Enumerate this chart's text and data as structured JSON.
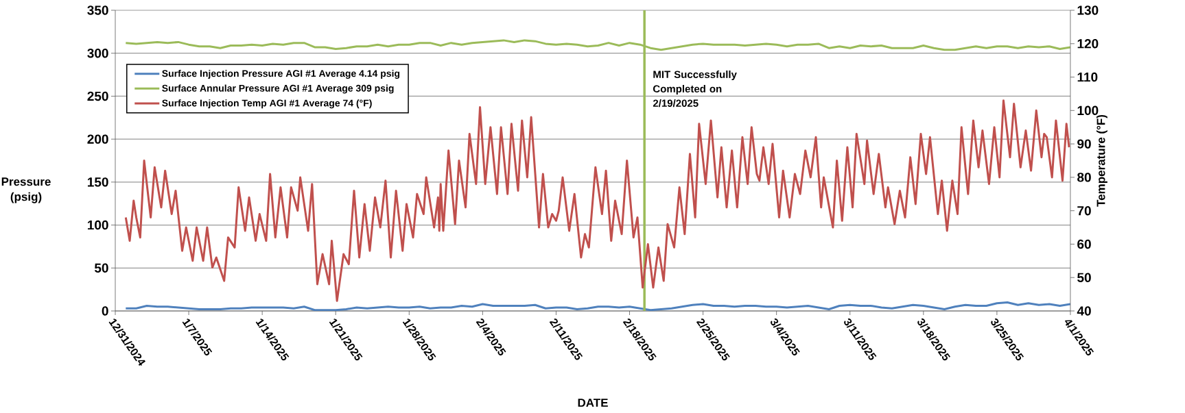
{
  "chart_data": {
    "type": "line",
    "xlabel": "DATE",
    "ylabel": "Pressure (psig)",
    "y2label": "Temperature (°F)",
    "xlim": [
      "2024-12-31",
      "2025-04-01"
    ],
    "xticks": [
      {
        "value": "2024-12-31",
        "label": "12/31/2024"
      },
      {
        "value": "2025-01-07",
        "label": "1/7/2025"
      },
      {
        "value": "2025-01-14",
        "label": "1/14/2025"
      },
      {
        "value": "2025-01-21",
        "label": "1/21/2025"
      },
      {
        "value": "2025-01-28",
        "label": "1/28/2025"
      },
      {
        "value": "2025-02-04",
        "label": "2/4/2025"
      },
      {
        "value": "2025-02-11",
        "label": "2/11/2025"
      },
      {
        "value": "2025-02-18",
        "label": "2/18/2025"
      },
      {
        "value": "2025-02-25",
        "label": "2/25/2025"
      },
      {
        "value": "2025-03-04",
        "label": "3/4/2025"
      },
      {
        "value": "2025-03-11",
        "label": "3/11/2025"
      },
      {
        "value": "2025-03-18",
        "label": "3/18/2025"
      },
      {
        "value": "2025-03-25",
        "label": "3/25/2025"
      },
      {
        "value": "2025-04-01",
        "label": "4/1/2025"
      }
    ],
    "ylim": [
      0,
      350
    ],
    "yticks": [
      0,
      50,
      100,
      150,
      200,
      250,
      300,
      350
    ],
    "y2lim": [
      40,
      130
    ],
    "y2ticks": [
      40,
      50,
      60,
      70,
      80,
      90,
      100,
      110,
      120,
      130
    ],
    "grid": "y",
    "legend": "top left",
    "marker": "none",
    "line_style": "solid",
    "ref_lines": [
      {
        "axis": "x",
        "value": "2025-02-19T10:00",
        "label": "MIT Successfully Completed on 2/19/2025",
        "color": "#9bbb59"
      }
    ],
    "x": [
      "2025-01-01",
      "2025-01-02",
      "2025-01-03",
      "2025-01-04",
      "2025-01-05",
      "2025-01-06",
      "2025-01-07",
      "2025-01-08",
      "2025-01-09",
      "2025-01-10",
      "2025-01-11",
      "2025-01-12",
      "2025-01-13",
      "2025-01-14",
      "2025-01-15",
      "2025-01-16",
      "2025-01-17",
      "2025-01-18",
      "2025-01-19",
      "2025-01-20",
      "2025-01-21",
      "2025-01-22",
      "2025-01-23",
      "2025-01-24",
      "2025-01-25",
      "2025-01-26",
      "2025-01-27",
      "2025-01-28",
      "2025-01-29",
      "2025-01-30",
      "2025-01-31",
      "2025-02-01",
      "2025-02-02",
      "2025-02-03",
      "2025-02-04",
      "2025-02-05",
      "2025-02-06",
      "2025-02-07",
      "2025-02-08",
      "2025-02-09",
      "2025-02-10",
      "2025-02-11",
      "2025-02-12",
      "2025-02-13",
      "2025-02-14",
      "2025-02-15",
      "2025-02-16",
      "2025-02-17",
      "2025-02-18",
      "2025-02-19",
      "2025-02-20",
      "2025-02-21",
      "2025-02-22",
      "2025-02-23",
      "2025-02-24",
      "2025-02-25",
      "2025-02-26",
      "2025-02-27",
      "2025-02-28",
      "2025-03-01",
      "2025-03-02",
      "2025-03-03",
      "2025-03-04",
      "2025-03-05",
      "2025-03-06",
      "2025-03-07",
      "2025-03-08",
      "2025-03-09",
      "2025-03-10",
      "2025-03-11",
      "2025-03-12",
      "2025-03-13",
      "2025-03-14",
      "2025-03-15",
      "2025-03-16",
      "2025-03-17",
      "2025-03-18",
      "2025-03-19",
      "2025-03-20",
      "2025-03-21",
      "2025-03-22",
      "2025-03-23",
      "2025-03-24",
      "2025-03-25",
      "2025-03-26",
      "2025-03-27",
      "2025-03-28",
      "2025-03-29",
      "2025-03-30",
      "2025-03-31",
      "2025-04-01"
    ],
    "series": [
      {
        "name": "Surface Injection Pressure AGI #1 Average 4.14 psig",
        "color": "#4f81bd",
        "values": [
          3,
          3,
          6,
          5,
          5,
          4,
          3,
          2,
          2,
          2,
          3,
          3,
          4,
          4,
          4,
          4,
          3,
          5,
          1,
          1,
          1,
          2,
          4,
          3,
          4,
          5,
          4,
          4,
          5,
          3,
          4,
          4,
          6,
          5,
          8,
          6,
          6,
          6,
          6,
          7,
          3,
          4,
          4,
          2,
          3,
          5,
          5,
          4,
          5,
          3,
          1,
          2,
          3,
          5,
          7,
          8,
          6,
          6,
          5,
          6,
          6,
          5,
          5,
          4,
          5,
          6,
          4,
          2,
          6,
          7,
          6,
          6,
          4,
          3,
          5,
          7,
          6,
          4,
          2,
          5,
          7,
          6,
          6,
          9,
          10,
          7,
          9,
          7,
          8,
          6,
          8
        ]
      },
      {
        "name": "Surface Annular Pressure AGI #1 Average 309 psig",
        "color": "#9bbb59",
        "values": [
          312,
          311,
          312,
          313,
          312,
          313,
          310,
          308,
          308,
          306,
          309,
          309,
          310,
          309,
          311,
          310,
          312,
          312,
          307,
          307,
          305,
          306,
          308,
          308,
          310,
          308,
          310,
          310,
          312,
          312,
          309,
          312,
          310,
          312,
          313,
          314,
          315,
          313,
          315,
          314,
          311,
          310,
          311,
          310,
          308,
          309,
          312,
          309,
          312,
          310,
          306,
          304,
          306,
          308,
          310,
          311,
          310,
          310,
          310,
          309,
          310,
          311,
          310,
          308,
          310,
          310,
          311,
          306,
          308,
          306,
          309,
          308,
          309,
          306,
          306,
          306,
          309,
          306,
          304,
          304,
          306,
          308,
          306,
          308,
          308,
          306,
          308,
          307,
          308,
          305,
          307
        ]
      },
      {
        "name": "Surface Injection Temp AGI #1 Average 74 (°F)",
        "color": "#c0504d",
        "axis": "y2",
        "x": [
          "2025-01-01T00:00",
          "2025-01-01T09:00",
          "2025-01-01T18:00",
          "2025-01-02T00:00",
          "2025-01-02T09:00",
          "2025-01-02T18:00",
          "2025-01-03T09:00",
          "2025-01-03T18:00",
          "2025-01-04T09:00",
          "2025-01-04T18:00",
          "2025-01-05T09:00",
          "2025-01-05T18:00",
          "2025-01-06T09:00",
          "2025-01-06T18:00",
          "2025-01-07T09:00",
          "2025-01-07T18:00",
          "2025-01-08T09:00",
          "2025-01-08T18:00",
          "2025-01-09T06:00",
          "2025-01-09T15:00",
          "2025-01-10T09:00",
          "2025-01-10T18:00",
          "2025-01-11T09:00",
          "2025-01-11T18:00",
          "2025-01-12T09:00",
          "2025-01-12T18:00",
          "2025-01-13T09:00",
          "2025-01-13T18:00",
          "2025-01-14T09:00",
          "2025-01-14T18:00",
          "2025-01-15T06:00",
          "2025-01-15T18:00",
          "2025-01-16T09:00",
          "2025-01-16T18:00",
          "2025-01-17T09:00",
          "2025-01-17T15:00",
          "2025-01-18T09:00",
          "2025-01-18T18:00",
          "2025-01-19T06:00",
          "2025-01-19T18:00",
          "2025-01-20T09:00",
          "2025-01-20T15:00",
          "2025-01-21T03:00",
          "2025-01-21T18:00",
          "2025-01-22T06:00",
          "2025-01-22T18:00",
          "2025-01-23T06:00",
          "2025-01-23T18:00",
          "2025-01-24T06:00",
          "2025-01-24T18:00",
          "2025-01-25T06:00",
          "2025-01-25T18:00",
          "2025-01-26T06:00",
          "2025-01-26T18:00",
          "2025-01-27T09:00",
          "2025-01-27T18:00",
          "2025-01-28T09:00",
          "2025-01-28T18:00",
          "2025-01-29T09:00",
          "2025-01-29T15:00",
          "2025-01-30T09:00",
          "2025-01-30T18:00",
          "2025-01-30T21:00",
          "2025-01-31T00:00",
          "2025-01-31T06:00",
          "2025-01-31T18:00",
          "2025-02-01T09:00",
          "2025-02-01T18:00",
          "2025-02-02T09:00",
          "2025-02-02T18:00",
          "2025-02-03T09:00",
          "2025-02-03T18:00",
          "2025-02-04T06:00",
          "2025-02-04T18:00",
          "2025-02-05T09:00",
          "2025-02-05T18:00",
          "2025-02-06T09:00",
          "2025-02-06T18:00",
          "2025-02-07T09:00",
          "2025-02-07T18:00",
          "2025-02-08T06:00",
          "2025-02-08T15:00",
          "2025-02-09T09:00",
          "2025-02-09T18:00",
          "2025-02-10T06:00",
          "2025-02-10T15:00",
          "2025-02-11T00:00",
          "2025-02-11T06:00",
          "2025-02-11T15:00",
          "2025-02-12T06:00",
          "2025-02-12T18:00",
          "2025-02-13T09:00",
          "2025-02-13T18:00",
          "2025-02-14T03:00",
          "2025-02-14T18:00",
          "2025-02-15T09:00",
          "2025-02-15T18:00",
          "2025-02-16T06:00",
          "2025-02-16T15:00",
          "2025-02-17T06:00",
          "2025-02-17T18:00",
          "2025-02-18T09:00",
          "2025-02-18T18:00",
          "2025-02-19T06:00",
          "2025-02-19T18:00",
          "2025-02-20T06:00",
          "2025-02-20T18:00",
          "2025-02-21T06:00",
          "2025-02-21T15:00",
          "2025-02-22T06:00",
          "2025-02-22T18:00",
          "2025-02-23T06:00",
          "2025-02-23T18:00",
          "2025-02-24T06:00",
          "2025-02-24T15:00",
          "2025-02-25T06:00",
          "2025-02-25T18:00",
          "2025-02-26T09:00",
          "2025-02-26T18:00",
          "2025-02-27T06:00",
          "2025-02-27T18:00",
          "2025-02-28T06:00",
          "2025-02-28T18:00",
          "2025-03-01T06:00",
          "2025-03-01T15:00",
          "2025-03-02T03:00",
          "2025-03-02T09:00",
          "2025-03-02T18:00",
          "2025-03-03T06:00",
          "2025-03-03T15:00",
          "2025-03-04T06:00",
          "2025-03-04T15:00",
          "2025-03-05T06:00",
          "2025-03-05T18:00",
          "2025-03-06T06:00",
          "2025-03-06T18:00",
          "2025-03-07T06:00",
          "2025-03-07T18:00",
          "2025-03-08T06:00",
          "2025-03-08T12:00",
          "2025-03-09T09:00",
          "2025-03-09T18:00",
          "2025-03-10T06:00",
          "2025-03-10T18:00",
          "2025-03-11T06:00",
          "2025-03-11T15:00",
          "2025-03-12T09:00",
          "2025-03-12T15:00",
          "2025-03-13T06:00",
          "2025-03-13T18:00",
          "2025-03-14T09:00",
          "2025-03-14T15:00",
          "2025-03-15T06:00",
          "2025-03-15T18:00",
          "2025-03-16T06:00",
          "2025-03-16T18:00",
          "2025-03-17T06:00",
          "2025-03-17T18:00",
          "2025-03-18T06:00",
          "2025-03-18T15:00",
          "2025-03-19T09:00",
          "2025-03-19T18:00",
          "2025-03-20T06:00",
          "2025-03-20T18:00",
          "2025-03-21T06:00",
          "2025-03-21T15:00",
          "2025-03-22T06:00",
          "2025-03-22T18:00",
          "2025-03-23T06:00",
          "2025-03-23T15:00",
          "2025-03-24T06:00",
          "2025-03-24T18:00",
          "2025-03-25T06:00",
          "2025-03-25T15:00",
          "2025-03-26T06:00",
          "2025-03-26T15:00",
          "2025-03-27T06:00",
          "2025-03-27T18:00",
          "2025-03-28T06:00",
          "2025-03-28T18:00",
          "2025-03-29T06:00",
          "2025-03-29T12:00",
          "2025-03-29T18:00",
          "2025-03-30T06:00",
          "2025-03-30T15:00",
          "2025-03-31T06:00",
          "2025-03-31T15:00",
          "2025-03-31T21:00"
        ],
        "values": [
          68,
          61,
          73,
          68,
          62,
          85,
          68,
          83,
          71,
          82,
          69,
          76,
          58,
          65,
          55,
          65,
          55,
          65,
          53,
          56,
          49,
          62,
          59,
          77,
          64,
          74,
          61,
          69,
          61,
          81,
          62,
          77,
          62,
          77,
          70,
          80,
          64,
          78,
          48,
          57,
          48,
          61,
          43,
          57,
          54,
          76,
          56,
          72,
          58,
          74,
          65,
          79,
          56,
          76,
          58,
          72,
          62,
          75,
          69,
          80,
          65,
          74,
          64,
          78,
          64,
          88,
          66,
          85,
          71,
          93,
          78,
          101,
          78,
          95,
          75,
          95,
          75,
          96,
          76,
          97,
          80,
          98,
          65,
          81,
          65,
          69,
          67,
          70,
          80,
          64,
          75,
          56,
          63,
          59,
          83,
          69,
          82,
          61,
          73,
          63,
          85,
          62,
          68,
          47,
          60,
          47,
          59,
          49,
          66,
          59,
          77,
          63,
          87,
          68,
          96,
          78,
          97,
          74,
          89,
          71,
          88,
          71,
          92,
          78,
          95,
          81,
          79,
          89,
          78,
          90,
          68,
          82,
          68,
          81,
          75,
          88,
          80,
          92,
          71,
          80,
          65,
          85,
          67,
          89,
          71,
          93,
          78,
          91,
          75,
          87,
          71,
          77,
          66,
          76,
          68,
          86,
          72,
          93,
          81,
          92,
          69,
          79,
          64,
          79,
          69,
          95,
          75,
          97,
          83,
          94,
          78,
          95,
          80,
          103,
          86,
          102,
          83,
          94,
          82,
          100,
          86,
          93,
          92,
          80,
          97,
          79,
          96,
          89
        ]
      }
    ]
  }
}
